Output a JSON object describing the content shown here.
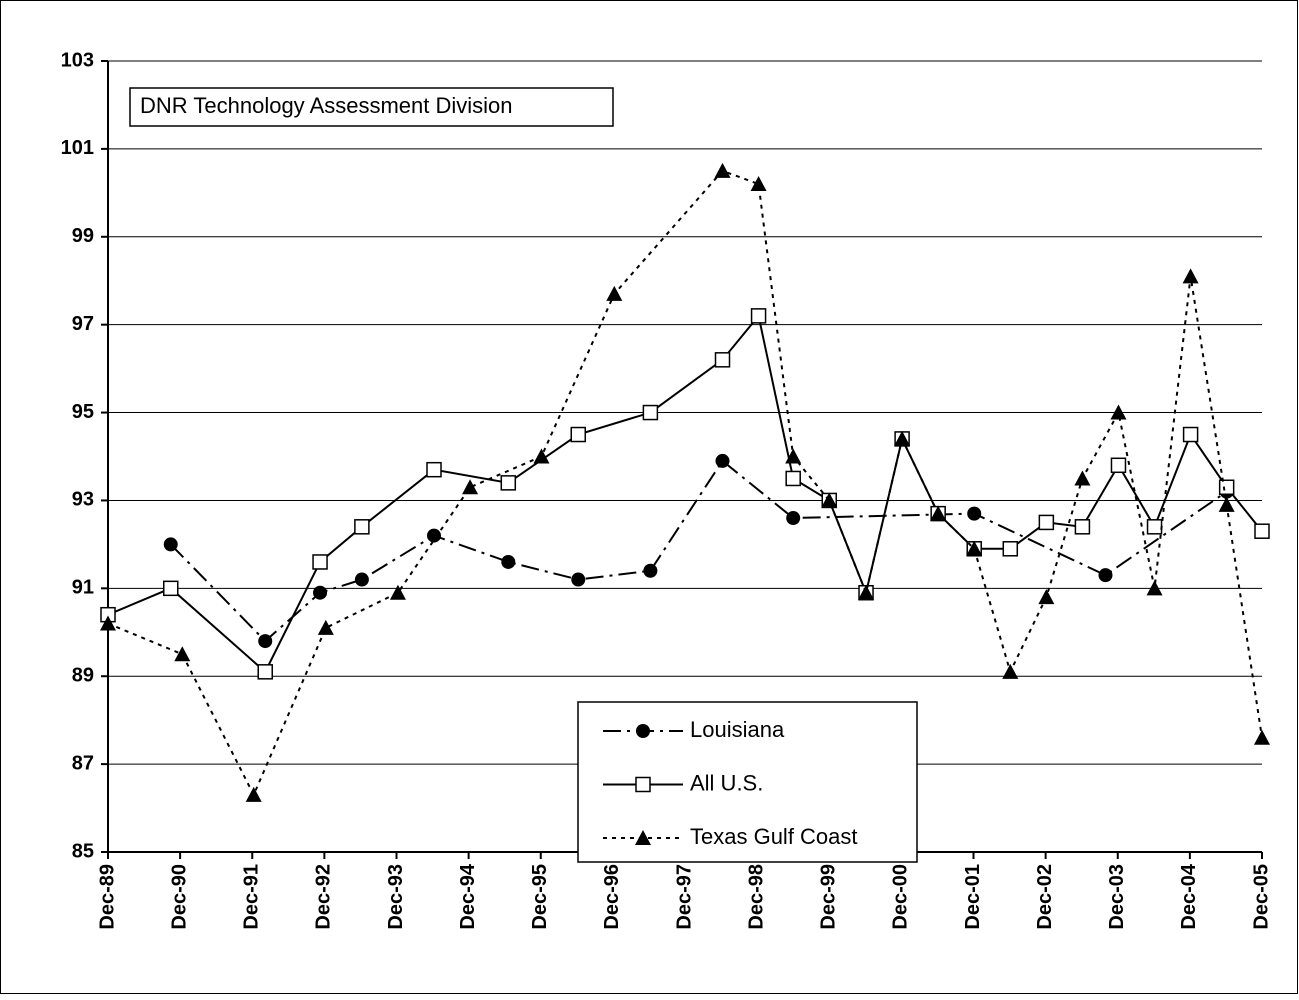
{
  "chart_data": {
    "type": "line",
    "annotations": [
      "DNR Technology Assessment Division"
    ],
    "ylim": [
      85,
      103
    ],
    "yticks": [
      85,
      87,
      89,
      91,
      93,
      95,
      97,
      99,
      101,
      103
    ],
    "grid": true,
    "xlim": [
      1989.92,
      2005.92
    ],
    "xticks": [
      {
        "value": 1989.92,
        "label": "Dec-89"
      },
      {
        "value": 1990.92,
        "label": "Dec-90"
      },
      {
        "value": 1991.92,
        "label": "Dec-91"
      },
      {
        "value": 1992.92,
        "label": "Dec-92"
      },
      {
        "value": 1993.92,
        "label": "Dec-93"
      },
      {
        "value": 1994.92,
        "label": "Dec-94"
      },
      {
        "value": 1995.92,
        "label": "Dec-95"
      },
      {
        "value": 1996.92,
        "label": "Dec-96"
      },
      {
        "value": 1997.92,
        "label": "Dec-97"
      },
      {
        "value": 1998.92,
        "label": "Dec-98"
      },
      {
        "value": 1999.92,
        "label": "Dec-99"
      },
      {
        "value": 2000.92,
        "label": "Dec-00"
      },
      {
        "value": 2001.92,
        "label": "Dec-01"
      },
      {
        "value": 2002.92,
        "label": "Dec-02"
      },
      {
        "value": 2003.92,
        "label": "Dec-03"
      },
      {
        "value": 2004.92,
        "label": "Dec-04"
      },
      {
        "value": 2005.92,
        "label": "Dec-05"
      }
    ],
    "legend": "bottom-center",
    "series": [
      {
        "name": "Louisiana",
        "color": "#000000",
        "marker": "circle",
        "dash": "dashdot",
        "x": [
          1990.79,
          1992.1,
          1992.86,
          1993.44,
          1994.44,
          1995.47,
          1996.44,
          1997.44,
          1998.44,
          1999.42,
          2001.93,
          2003.75,
          2005.43
        ],
        "values": [
          92.0,
          89.8,
          90.9,
          91.2,
          92.2,
          91.6,
          91.2,
          91.4,
          93.9,
          92.6,
          92.7,
          91.3,
          93.2
        ]
      },
      {
        "name": "All U.S.",
        "color": "#000000",
        "marker": "square",
        "dash": "solid",
        "x": [
          1989.92,
          1990.79,
          1992.1,
          1992.86,
          1993.44,
          1994.44,
          1995.47,
          1996.44,
          1997.44,
          1998.44,
          1998.94,
          1999.42,
          1999.92,
          2000.43,
          2000.93,
          2001.43,
          2001.93,
          2002.43,
          2002.93,
          2003.43,
          2003.93,
          2004.43,
          2004.93,
          2005.43,
          2005.92
        ],
        "values": [
          90.4,
          91.0,
          89.1,
          91.6,
          92.4,
          93.7,
          93.4,
          94.5,
          95.0,
          96.2,
          97.2,
          93.5,
          93.0,
          90.9,
          94.4,
          92.7,
          91.9,
          91.9,
          92.5,
          92.4,
          93.8,
          92.4,
          94.5,
          93.3,
          92.3
        ]
      },
      {
        "name": "Texas Gulf Coast",
        "color": "#000000",
        "marker": "triangle",
        "dash": "dotted",
        "x": [
          1989.92,
          1990.95,
          1991.94,
          1992.94,
          1993.94,
          1994.94,
          1995.93,
          1996.94,
          1998.44,
          1998.94,
          1999.42,
          1999.92,
          2000.43,
          2000.93,
          2001.43,
          2001.93,
          2002.43,
          2002.93,
          2003.43,
          2003.93,
          2004.43,
          2004.93,
          2005.43,
          2005.92
        ],
        "values": [
          90.2,
          89.5,
          86.3,
          90.1,
          90.9,
          93.3,
          94.0,
          97.7,
          100.5,
          100.2,
          94.0,
          93.0,
          90.9,
          94.4,
          92.7,
          91.9,
          89.1,
          90.8,
          93.5,
          95.0,
          91.0,
          98.1,
          92.9,
          87.6
        ]
      }
    ]
  }
}
